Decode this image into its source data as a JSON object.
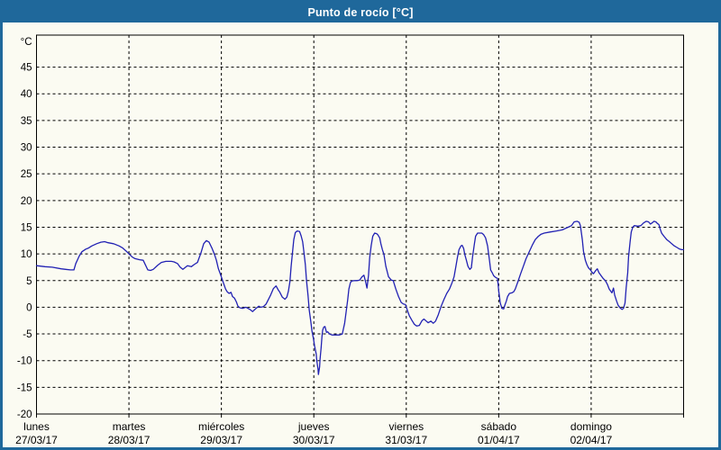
{
  "window": {
    "title": "Punto de rocío [°C]"
  },
  "colors": {
    "frame": "#1f689b",
    "titlebar_bg": "#1f689b",
    "title_text": "#ffffff",
    "plot_bg": "#fbfbf2",
    "grid": "#000000",
    "axis": "#000000",
    "label_text": "#000000",
    "line": "#2121b3"
  },
  "chart_data": {
    "type": "line",
    "title": "Punto de rocío [°C]",
    "ylabel": "°C",
    "xlabel": "",
    "grid": "dashed",
    "legend_position": "none",
    "ylim": [
      -20,
      51
    ],
    "yticks": [
      45,
      40,
      35,
      30,
      25,
      20,
      15,
      10,
      5,
      0,
      -5,
      -10,
      -15,
      -20
    ],
    "x_total_hours": 168,
    "x_days": [
      {
        "name": "lunes",
        "date": "27/03/17"
      },
      {
        "name": "martes",
        "date": "28/03/17"
      },
      {
        "name": "miércoles",
        "date": "29/03/17"
      },
      {
        "name": "jueves",
        "date": "30/03/17"
      },
      {
        "name": "viernes",
        "date": "31/03/17"
      },
      {
        "name": "sábado",
        "date": "01/04/17"
      },
      {
        "name": "domingo",
        "date": "02/04/17"
      }
    ],
    "series": [
      {
        "name": "Punto de rocío",
        "unit": "°C",
        "points": [
          [
            0,
            7.8
          ],
          [
            2.2,
            7.6
          ],
          [
            4.1,
            7.5
          ],
          [
            6.4,
            7.2
          ],
          [
            7.6,
            7.1
          ],
          [
            8.8,
            7.0
          ],
          [
            9.7,
            7.0
          ],
          [
            10.2,
            8.2
          ],
          [
            11.1,
            9.6
          ],
          [
            11.8,
            10.4
          ],
          [
            12.8,
            10.9
          ],
          [
            13.5,
            11.1
          ],
          [
            14.4,
            11.5
          ],
          [
            15.6,
            11.9
          ],
          [
            16.7,
            12.2
          ],
          [
            17.7,
            12.3
          ],
          [
            18.6,
            12.1
          ],
          [
            20,
            11.9
          ],
          [
            21.4,
            11.5
          ],
          [
            22.4,
            11.1
          ],
          [
            23.3,
            10.5
          ],
          [
            24,
            10
          ],
          [
            24.9,
            9.4
          ],
          [
            25.6,
            9.1
          ],
          [
            26.8,
            8.9
          ],
          [
            27.7,
            8.8
          ],
          [
            28.9,
            7.0
          ],
          [
            29.6,
            6.9
          ],
          [
            30.3,
            7.1
          ],
          [
            31.5,
            7.9
          ],
          [
            32.4,
            8.4
          ],
          [
            33.6,
            8.6
          ],
          [
            35,
            8.6
          ],
          [
            35.7,
            8.5
          ],
          [
            36.6,
            8.2
          ],
          [
            37.3,
            7.5
          ],
          [
            38,
            7.1
          ],
          [
            39.2,
            7.8
          ],
          [
            40.2,
            7.6
          ],
          [
            40.9,
            8.0
          ],
          [
            41.8,
            8.4
          ],
          [
            42.7,
            10.2
          ],
          [
            43.4,
            11.9
          ],
          [
            44.1,
            12.5
          ],
          [
            44.8,
            12.2
          ],
          [
            45.6,
            11.0
          ],
          [
            46.2,
            9.9
          ],
          [
            46.7,
            8.8
          ],
          [
            47.2,
            7.3
          ],
          [
            48,
            5.7
          ],
          [
            48.4,
            4.8
          ],
          [
            49.1,
            3.4
          ],
          [
            49.5,
            2.9
          ],
          [
            50,
            2.6
          ],
          [
            50.5,
            2.8
          ],
          [
            50.9,
            2.0
          ],
          [
            51.4,
            1.7
          ],
          [
            51.9,
            1.0
          ],
          [
            52.3,
            0.2
          ],
          [
            52.8,
            -0.1
          ],
          [
            53.5,
            -0.2
          ],
          [
            54.4,
            0.0
          ],
          [
            55.4,
            -0.4
          ],
          [
            56.1,
            -0.8
          ],
          [
            57,
            -0.2
          ],
          [
            57.7,
            0.2
          ],
          [
            58.2,
            0.0
          ],
          [
            58.9,
            0.1
          ],
          [
            59.6,
            0.6
          ],
          [
            60.8,
            2.3
          ],
          [
            61.5,
            3.5
          ],
          [
            62.2,
            4.0
          ],
          [
            62.8,
            3.2
          ],
          [
            63.1,
            2.9
          ],
          [
            63.8,
            1.9
          ],
          [
            64.5,
            1.5
          ],
          [
            65,
            1.9
          ],
          [
            65.4,
            3.0
          ],
          [
            65.8,
            4.8
          ],
          [
            66.1,
            7.6
          ],
          [
            66.5,
            10.5
          ],
          [
            66.8,
            12.7
          ],
          [
            67.2,
            14.0
          ],
          [
            67.7,
            14.3
          ],
          [
            68.3,
            14.2
          ],
          [
            68.7,
            13.4
          ],
          [
            69.1,
            12.3
          ],
          [
            69.4,
            10.5
          ],
          [
            69.8,
            8.0
          ],
          [
            70.1,
            5.0
          ],
          [
            70.5,
            2.2
          ],
          [
            70.8,
            -0.5
          ],
          [
            71.2,
            -2.6
          ],
          [
            71.5,
            -4.4
          ],
          [
            71.9,
            -5.9
          ],
          [
            72.2,
            -7.3
          ],
          [
            72.6,
            -8.7
          ],
          [
            72.8,
            -10.1
          ],
          [
            73.1,
            -11.6
          ],
          [
            73.2,
            -12.6
          ],
          [
            73.5,
            -11.2
          ],
          [
            73.6,
            -9.8
          ],
          [
            73.9,
            -7.6
          ],
          [
            74.1,
            -5.6
          ],
          [
            74.3,
            -4.3
          ],
          [
            74.6,
            -3.7
          ],
          [
            74.9,
            -3.6
          ],
          [
            75.3,
            -4.7
          ],
          [
            75.6,
            -4.6
          ],
          [
            76.1,
            -5.0
          ],
          [
            76.7,
            -5.2
          ],
          [
            77.6,
            -5.2
          ],
          [
            78.6,
            -5.2
          ],
          [
            79.4,
            -5.0
          ],
          [
            80,
            -3.0
          ],
          [
            80.4,
            -0.8
          ],
          [
            80.8,
            1.4
          ],
          [
            81.1,
            3.4
          ],
          [
            81.5,
            4.6
          ],
          [
            81.8,
            4.9
          ],
          [
            82.5,
            5.0
          ],
          [
            83.2,
            5.0
          ],
          [
            83.9,
            5.1
          ],
          [
            84.5,
            5.7
          ],
          [
            85,
            6.0
          ],
          [
            85.5,
            4.6
          ],
          [
            85.8,
            3.6
          ],
          [
            86.2,
            6.0
          ],
          [
            86.5,
            9.3
          ],
          [
            86.9,
            11.6
          ],
          [
            87.3,
            13.3
          ],
          [
            87.8,
            13.9
          ],
          [
            88.3,
            13.8
          ],
          [
            88.6,
            13.6
          ],
          [
            89.1,
            13.0
          ],
          [
            89.4,
            11.9
          ],
          [
            89.8,
            10.8
          ],
          [
            90.2,
            9.9
          ],
          [
            90.7,
            7.7
          ],
          [
            91.4,
            5.7
          ],
          [
            92.1,
            5.1
          ],
          [
            92.6,
            5.0
          ],
          [
            93.3,
            3.4
          ],
          [
            94,
            2.0
          ],
          [
            94.7,
            0.9
          ],
          [
            95.3,
            0.6
          ],
          [
            95.8,
            0.5
          ],
          [
            96.4,
            -0.8
          ],
          [
            96.8,
            -1.6
          ],
          [
            97.5,
            -2.5
          ],
          [
            98.1,
            -3.2
          ],
          [
            98.7,
            -3.5
          ],
          [
            99.4,
            -3.4
          ],
          [
            100.1,
            -2.5
          ],
          [
            100.6,
            -2.2
          ],
          [
            101.2,
            -2.6
          ],
          [
            101.7,
            -2.9
          ],
          [
            102.4,
            -2.6
          ],
          [
            103,
            -3.0
          ],
          [
            103.6,
            -2.6
          ],
          [
            104.3,
            -1.4
          ],
          [
            105,
            0.1
          ],
          [
            105.8,
            1.5
          ],
          [
            106.5,
            2.6
          ],
          [
            107.2,
            3.4
          ],
          [
            107.9,
            4.6
          ],
          [
            108.4,
            5.7
          ],
          [
            108.9,
            7.7
          ],
          [
            109.3,
            9.4
          ],
          [
            109.7,
            10.8
          ],
          [
            110.2,
            11.5
          ],
          [
            110.5,
            11.6
          ],
          [
            110.9,
            11.0
          ],
          [
            111.2,
            9.9
          ],
          [
            111.6,
            8.8
          ],
          [
            112,
            7.7
          ],
          [
            112.5,
            7.1
          ],
          [
            112.9,
            7.4
          ],
          [
            113.2,
            9.4
          ],
          [
            113.7,
            11.9
          ],
          [
            114,
            13.3
          ],
          [
            114.5,
            13.9
          ],
          [
            115.1,
            13.9
          ],
          [
            115.6,
            13.9
          ],
          [
            116.1,
            13.6
          ],
          [
            116.6,
            13.0
          ],
          [
            117.1,
            11.5
          ],
          [
            117.6,
            8.8
          ],
          [
            117.9,
            7.0
          ],
          [
            118.3,
            6.5
          ],
          [
            118.7,
            5.9
          ],
          [
            119.2,
            5.6
          ],
          [
            119.7,
            5.4
          ],
          [
            120,
            3.0
          ],
          [
            120.4,
            0.8
          ],
          [
            120.8,
            -0.2
          ],
          [
            121.3,
            -0.3
          ],
          [
            121.6,
            0.4
          ],
          [
            122,
            1.2
          ],
          [
            122.3,
            2.0
          ],
          [
            122.8,
            2.6
          ],
          [
            123.4,
            2.7
          ],
          [
            123.9,
            2.9
          ],
          [
            124.3,
            3.4
          ],
          [
            125,
            4.8
          ],
          [
            125.7,
            6.3
          ],
          [
            126.4,
            7.7
          ],
          [
            127.1,
            9.1
          ],
          [
            128,
            10.5
          ],
          [
            128.7,
            11.6
          ],
          [
            129.5,
            12.7
          ],
          [
            130.3,
            13.3
          ],
          [
            131,
            13.7
          ],
          [
            131.8,
            13.9
          ],
          [
            133.3,
            14.1
          ],
          [
            135,
            14.3
          ],
          [
            136.5,
            14.5
          ],
          [
            138,
            15.0
          ],
          [
            138.9,
            15.3
          ],
          [
            139.6,
            16.0
          ],
          [
            140.4,
            16.1
          ],
          [
            140.9,
            15.9
          ],
          [
            141.2,
            15.3
          ],
          [
            141.7,
            12.7
          ],
          [
            142,
            10.5
          ],
          [
            142.5,
            8.8
          ],
          [
            142.9,
            8.0
          ],
          [
            143.3,
            7.4
          ],
          [
            143.8,
            7.0
          ],
          [
            144.3,
            6.5
          ],
          [
            144.6,
            6.3
          ],
          [
            145.1,
            6.8
          ],
          [
            145.6,
            7.2
          ],
          [
            146,
            6.5
          ],
          [
            146.6,
            5.9
          ],
          [
            147.1,
            5.4
          ],
          [
            147.7,
            5.0
          ],
          [
            148.2,
            4.3
          ],
          [
            148.7,
            3.4
          ],
          [
            149.1,
            3.0
          ],
          [
            149.4,
            2.7
          ],
          [
            149.8,
            3.6
          ],
          [
            150.1,
            2.3
          ],
          [
            150.6,
            1.2
          ],
          [
            151,
            0.4
          ],
          [
            151.5,
            -0.1
          ],
          [
            152,
            -0.4
          ],
          [
            152.4,
            -0.2
          ],
          [
            152.8,
            0.8
          ],
          [
            153.1,
            3.7
          ],
          [
            153.5,
            6.5
          ],
          [
            153.7,
            9.4
          ],
          [
            154.1,
            12.2
          ],
          [
            154.4,
            14.1
          ],
          [
            154.8,
            15.0
          ],
          [
            155.2,
            15.3
          ],
          [
            156.1,
            15.2
          ],
          [
            156.9,
            15.3
          ],
          [
            157.6,
            15.8
          ],
          [
            158.3,
            16.1
          ],
          [
            158.9,
            16.0
          ],
          [
            159.4,
            15.6
          ],
          [
            159.8,
            15.8
          ],
          [
            160.3,
            16.1
          ],
          [
            160.8,
            16.0
          ],
          [
            161.2,
            15.7
          ],
          [
            161.6,
            15.5
          ],
          [
            161.9,
            14.7
          ],
          [
            162.3,
            13.9
          ],
          [
            162.9,
            13.3
          ],
          [
            163.6,
            12.7
          ],
          [
            164.3,
            12.3
          ],
          [
            164.9,
            11.9
          ],
          [
            165.6,
            11.5
          ],
          [
            166.3,
            11.2
          ],
          [
            167,
            10.9
          ],
          [
            167.5,
            10.8
          ],
          [
            168,
            10.8
          ]
        ]
      }
    ]
  }
}
